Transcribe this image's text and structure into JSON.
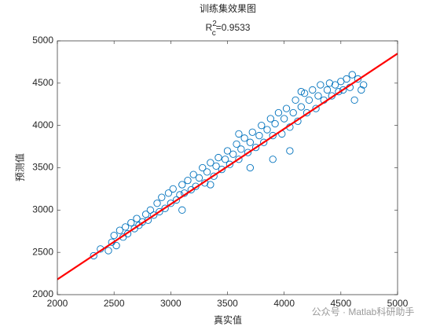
{
  "chart_data": {
    "type": "scatter",
    "title": "训练集效果图",
    "subtitle": {
      "base": "R",
      "sup": "2",
      "sub": "c",
      "rest": "=0.9533"
    },
    "x_label": "真实值",
    "y_label": "预测值",
    "annotation": "公众号 · Matlab科研助手",
    "xlim": [
      2000,
      5000
    ],
    "ylim": [
      2000,
      5000
    ],
    "xticks": [
      2000,
      2500,
      3000,
      3500,
      4000,
      4500,
      5000
    ],
    "yticks": [
      2000,
      2500,
      3000,
      3500,
      4000,
      4500,
      5000
    ],
    "grid": false,
    "color": "#0072bd",
    "x": [
      2320,
      2380,
      2450,
      2480,
      2500,
      2520,
      2550,
      2580,
      2600,
      2620,
      2650,
      2680,
      2700,
      2720,
      2750,
      2780,
      2800,
      2820,
      2850,
      2880,
      2900,
      2920,
      2950,
      2980,
      3000,
      3020,
      3050,
      3080,
      3100,
      3120,
      3150,
      3180,
      3200,
      3220,
      3250,
      3280,
      3300,
      3320,
      3350,
      3380,
      3400,
      3420,
      3450,
      3480,
      3500,
      3520,
      3550,
      3580,
      3600,
      3620,
      3650,
      3680,
      3700,
      3720,
      3750,
      3780,
      3800,
      3820,
      3850,
      3880,
      3900,
      3920,
      3950,
      3980,
      4000,
      4020,
      4050,
      4080,
      4100,
      4120,
      4150,
      4180,
      4200,
      4220,
      4250,
      4280,
      4300,
      4320,
      4350,
      4380,
      4400,
      4420,
      4450,
      4480,
      4500,
      4520,
      4550,
      4580,
      4600,
      4620,
      4650,
      4680,
      4700,
      3900,
      4050,
      3700,
      3350,
      3100,
      4150,
      3600
    ],
    "values": [
      2460,
      2540,
      2520,
      2620,
      2700,
      2580,
      2760,
      2680,
      2800,
      2720,
      2850,
      2780,
      2900,
      2820,
      2860,
      2950,
      2880,
      3000,
      2940,
      3080,
      2980,
      3150,
      3020,
      3200,
      3080,
      3250,
      3120,
      3180,
      3300,
      3200,
      3350,
      3240,
      3420,
      3280,
      3380,
      3500,
      3320,
      3450,
      3560,
      3400,
      3520,
      3620,
      3480,
      3600,
      3700,
      3540,
      3660,
      3780,
      3600,
      3720,
      3850,
      3680,
      3800,
      3920,
      3740,
      3880,
      4000,
      3800,
      3950,
      4080,
      3880,
      4020,
      4150,
      3900,
      4080,
      4200,
      3980,
      4150,
      4300,
      4050,
      4220,
      4380,
      4150,
      4300,
      4420,
      4200,
      4350,
      4480,
      4300,
      4420,
      4500,
      4350,
      4480,
      4400,
      4520,
      4420,
      4550,
      4450,
      4600,
      4300,
      4550,
      4420,
      4480,
      3600,
      3700,
      3500,
      3300,
      3000,
      4400,
      3900
    ],
    "fit_line": {
      "x": [
        2000,
        5000
      ],
      "values": [
        2180,
        4850
      ],
      "color": "#ff0000"
    }
  }
}
